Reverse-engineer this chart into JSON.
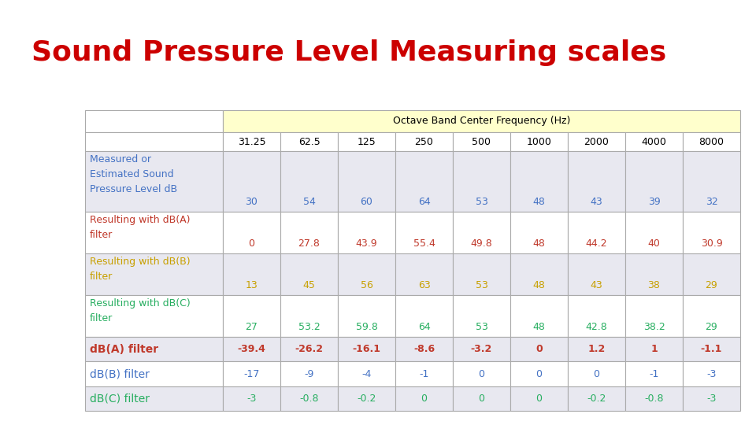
{
  "title": "Sound Pressure Level Measuring scales",
  "title_color": "#cc0000",
  "title_fontsize": 26,
  "background_color": "#ffffff",
  "header_bg": "#ffffcc",
  "table_border_color": "#aaaaaa",
  "col_headers": [
    "31.25",
    "62.5",
    "125",
    "250",
    "500",
    "1000",
    "2000",
    "4000",
    "8000"
  ],
  "span_header": "Octave Band Center Frequency (Hz)",
  "rows": [
    {
      "label": "Measured or\nEstimated Sound\nPressure Level dB",
      "label_color": "#4472c4",
      "values": [
        "30",
        "54",
        "60",
        "64",
        "53",
        "48",
        "43",
        "39",
        "32"
      ],
      "value_color": "#4472c4",
      "bold": false,
      "values_valign": "bottom",
      "row_bg": "#e8e8f0"
    },
    {
      "label": "Resulting with dB(A)\nfilter",
      "label_color": "#c0392b",
      "values": [
        "0",
        "27.8",
        "43.9",
        "55.4",
        "49.8",
        "48",
        "44.2",
        "40",
        "30.9"
      ],
      "value_color": "#c0392b",
      "bold": false,
      "values_valign": "bottom",
      "row_bg": "#ffffff"
    },
    {
      "label": "Resulting with dB(B)\nfilter",
      "label_color": "#c8a000",
      "values": [
        "13",
        "45",
        "56",
        "63",
        "53",
        "48",
        "43",
        "38",
        "29"
      ],
      "value_color": "#c8a000",
      "bold": false,
      "values_valign": "bottom",
      "row_bg": "#e8e8f0"
    },
    {
      "label": "Resulting with dB(C)\nfilter",
      "label_color": "#27ae60",
      "values": [
        "27",
        "53.2",
        "59.8",
        "64",
        "53",
        "48",
        "42.8",
        "38.2",
        "29"
      ],
      "value_color": "#27ae60",
      "bold": false,
      "values_valign": "bottom",
      "row_bg": "#ffffff"
    },
    {
      "label": "dB(A) filter",
      "label_color": "#c0392b",
      "values": [
        "-39.4",
        "-26.2",
        "-16.1",
        "-8.6",
        "-3.2",
        "0",
        "1.2",
        "1",
        "-1.1"
      ],
      "value_color": "#c0392b",
      "bold": true,
      "values_valign": "center",
      "row_bg": "#e8e8f0"
    },
    {
      "label": "dB(B) filter",
      "label_color": "#4472c4",
      "values": [
        "-17",
        "-9",
        "-4",
        "-1",
        "0",
        "0",
        "0",
        "-1",
        "-3"
      ],
      "value_color": "#4472c4",
      "bold": false,
      "values_valign": "center",
      "row_bg": "#ffffff"
    },
    {
      "label": "dB(C) filter",
      "label_color": "#27ae60",
      "values": [
        "-3",
        "-0.8",
        "-0.2",
        "0",
        "0",
        "0",
        "-0.2",
        "-0.8",
        "-3"
      ],
      "value_color": "#27ae60",
      "bold": false,
      "values_valign": "center",
      "row_bg": "#e8e8f0"
    }
  ]
}
